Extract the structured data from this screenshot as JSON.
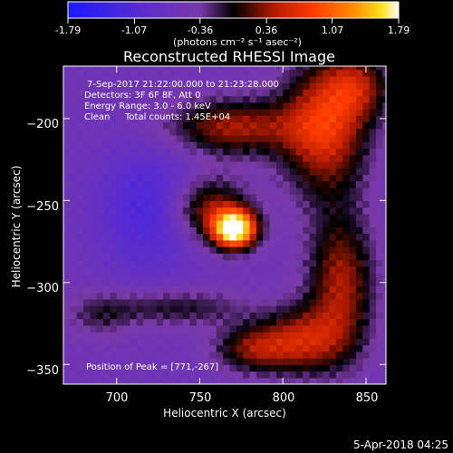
{
  "colorbar": {
    "ticks": [
      "-1.79",
      "-1.07",
      "-0.36",
      "0.36",
      "1.07",
      "1.79"
    ],
    "tick_values": [
      -1.79,
      -1.07,
      -0.36,
      0.36,
      1.07,
      1.79
    ],
    "unit_label": "(photons cm⁻² s⁻¹ asec⁻²)",
    "colors": [
      "#1a1aff",
      "#5a2bd0",
      "#7a3aa8",
      "#000000",
      "#b01a00",
      "#ff3a00",
      "#ff8a00",
      "#ffe020",
      "#ffffff"
    ]
  },
  "chart_data": {
    "type": "heatmap",
    "title": "Reconstructed RHESSI Image",
    "xlabel": "Heliocentric X (arcsec)",
    "ylabel": "Heliocentric Y (arcsec)",
    "xlim": [
      668,
      862
    ],
    "ylim": [
      -362,
      -168
    ],
    "xticks": [
      700,
      750,
      800,
      850
    ],
    "yticks": [
      -200,
      -250,
      -300,
      -350
    ],
    "xtick_labels": [
      "700",
      "750",
      "800",
      "850"
    ],
    "ytick_labels": [
      "−200",
      "−250",
      "−300",
      "−350"
    ],
    "zlim": [
      -1.79,
      1.79
    ],
    "peak": [
      771,
      -267
    ],
    "info_lines": [
      "7-Sep-2017 21:22:00.000 to 21:23:28.000",
      "Detectors: 3F 6F 8F, Att 0",
      "Energy Range: 3.0 - 6.0 keV",
      "Clean",
      "Total counts: 1.45E+04"
    ],
    "peak_label": "Position of Peak = [771,-267]"
  },
  "footer": {
    "timestamp": "5-Apr-2018 04:25"
  }
}
